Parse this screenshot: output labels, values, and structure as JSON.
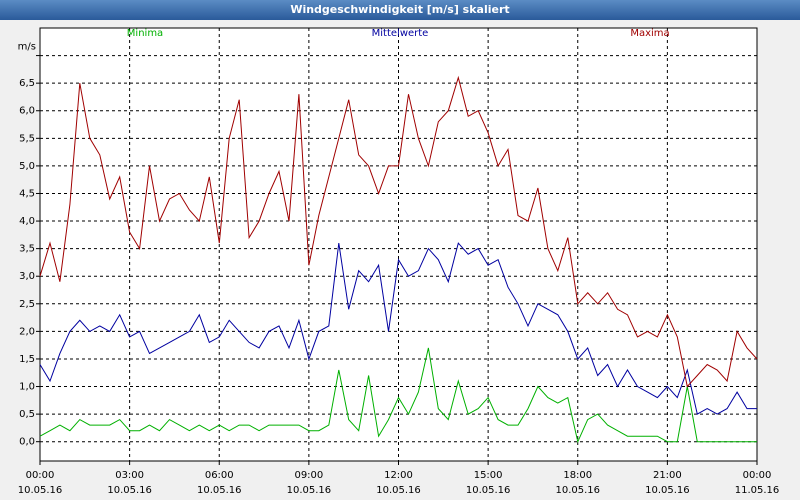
{
  "chart_data": {
    "type": "line",
    "title": "Windgeschwindigkeit [m/s] skaliert",
    "x": [
      0,
      20,
      40,
      60,
      80,
      100,
      120,
      140,
      160,
      180,
      200,
      220,
      240,
      260,
      280,
      300,
      320,
      340,
      360,
      380,
      400,
      420,
      440,
      460,
      480,
      500,
      520,
      540,
      560,
      580,
      600,
      620,
      640,
      660,
      680,
      700,
      720,
      740,
      760,
      780,
      800,
      820,
      840,
      860,
      880,
      900,
      920,
      940,
      960,
      980,
      1000,
      1020,
      1040,
      1060,
      1080,
      1100,
      1120,
      1140,
      1160,
      1180,
      1200,
      1220,
      1240,
      1260,
      1280,
      1300,
      1320,
      1340,
      1360,
      1380,
      1400,
      1420,
      1440
    ],
    "series": [
      {
        "name": "Minima",
        "color": "#00b000",
        "values": [
          0.1,
          0.2,
          0.3,
          0.2,
          0.4,
          0.3,
          0.3,
          0.3,
          0.4,
          0.2,
          0.2,
          0.3,
          0.2,
          0.4,
          0.3,
          0.2,
          0.3,
          0.2,
          0.3,
          0.2,
          0.3,
          0.3,
          0.2,
          0.3,
          0.3,
          0.3,
          0.3,
          0.2,
          0.2,
          0.3,
          1.3,
          0.4,
          0.2,
          1.2,
          0.1,
          0.4,
          0.8,
          0.5,
          0.9,
          1.7,
          0.6,
          0.4,
          1.1,
          0.5,
          0.6,
          0.8,
          0.4,
          0.3,
          0.3,
          0.6,
          1.0,
          0.8,
          0.7,
          0.8,
          0.0,
          0.4,
          0.5,
          0.3,
          0.2,
          0.1,
          0.1,
          0.1,
          0.1,
          0.0,
          0.0,
          1.0,
          0.0,
          0.0,
          0.0,
          0.0,
          0.0,
          0.0,
          0.0
        ]
      },
      {
        "name": "Mittelwerte",
        "color": "#0000a0",
        "values": [
          1.4,
          1.1,
          1.6,
          2.0,
          2.2,
          2.0,
          2.1,
          2.0,
          2.3,
          1.9,
          2.0,
          1.6,
          1.7,
          1.8,
          1.9,
          2.0,
          2.3,
          1.8,
          1.9,
          2.2,
          2.0,
          1.8,
          1.7,
          2.0,
          2.1,
          1.7,
          2.2,
          1.5,
          2.0,
          2.1,
          3.6,
          2.4,
          3.1,
          2.9,
          3.2,
          2.0,
          3.3,
          3.0,
          3.1,
          3.5,
          3.3,
          2.9,
          3.6,
          3.4,
          3.5,
          3.2,
          3.3,
          2.8,
          2.5,
          2.1,
          2.5,
          2.4,
          2.3,
          2.0,
          1.5,
          1.7,
          1.2,
          1.4,
          1.0,
          1.3,
          1.0,
          0.9,
          0.8,
          1.0,
          0.8,
          1.3,
          0.5,
          0.6,
          0.5,
          0.6,
          0.9,
          0.6,
          0.6
        ]
      },
      {
        "name": "Maxima",
        "color": "#a00000",
        "values": [
          3.0,
          3.6,
          2.9,
          4.3,
          6.5,
          5.5,
          5.2,
          4.4,
          4.8,
          3.8,
          3.5,
          5.0,
          4.0,
          4.4,
          4.5,
          4.2,
          4.0,
          4.8,
          3.6,
          5.5,
          6.2,
          3.7,
          4.0,
          4.5,
          4.9,
          4.0,
          6.3,
          3.2,
          4.1,
          4.8,
          5.5,
          6.2,
          5.2,
          5.0,
          4.5,
          5.0,
          5.0,
          6.3,
          5.5,
          5.0,
          5.8,
          6.0,
          6.6,
          5.9,
          6.0,
          5.6,
          5.0,
          5.3,
          4.1,
          4.0,
          4.6,
          3.5,
          3.1,
          3.7,
          2.5,
          2.7,
          2.5,
          2.7,
          2.4,
          2.3,
          1.9,
          2.0,
          1.9,
          2.3,
          1.9,
          1.0,
          1.2,
          1.4,
          1.3,
          1.1,
          2.0,
          1.7,
          1.5
        ]
      }
    ],
    "xlim": [
      0,
      1440
    ],
    "xticks": [
      {
        "value": 0,
        "label": "00:00"
      },
      {
        "value": 180,
        "label": "03:00"
      },
      {
        "value": 360,
        "label": "06:00"
      },
      {
        "value": 540,
        "label": "09:00"
      },
      {
        "value": 720,
        "label": "12:00"
      },
      {
        "value": 900,
        "label": "15:00"
      },
      {
        "value": 1080,
        "label": "18:00"
      },
      {
        "value": 1260,
        "label": "21:00"
      },
      {
        "value": 1440,
        "label": "00:00"
      }
    ],
    "xtick_dates": [
      "10.05.16",
      "10.05.16",
      "10.05.16",
      "10.05.16",
      "10.05.16",
      "10.05.16",
      "10.05.16",
      "10.05.16",
      "11.05.16"
    ],
    "ylim": [
      -0.35,
      7.5
    ],
    "yticks": [
      {
        "value": 0,
        "label": "0,0"
      },
      {
        "value": 0.5,
        "label": "0,5"
      },
      {
        "value": 1,
        "label": "1,0"
      },
      {
        "value": 1.5,
        "label": "1,5"
      },
      {
        "value": 2,
        "label": "2,0"
      },
      {
        "value": 2.5,
        "label": "2,5"
      },
      {
        "value": 3,
        "label": "3,0"
      },
      {
        "value": 3.5,
        "label": "3,5"
      },
      {
        "value": 4,
        "label": "4,0"
      },
      {
        "value": 4.5,
        "label": "4,5"
      },
      {
        "value": 5,
        "label": "5,0"
      },
      {
        "value": 5.5,
        "label": "5,5"
      },
      {
        "value": 6,
        "label": "6,0"
      },
      {
        "value": 6.5,
        "label": "6,5"
      },
      {
        "value": 7,
        "label": "m/s"
      }
    ],
    "grid": true
  }
}
